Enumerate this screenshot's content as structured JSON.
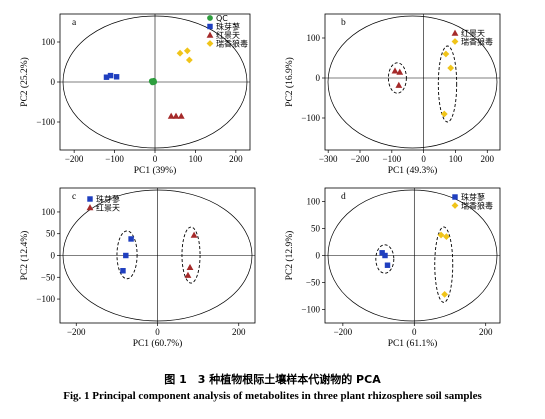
{
  "chart_data": [
    {
      "panel": "a",
      "type": "scatter",
      "xlabel": "PC1 (39%)",
      "ylabel": "PC2 (25.2%)",
      "xlim": [
        -235,
        235
      ],
      "ylim": [
        -170,
        170
      ],
      "xticks": [
        -200,
        -100,
        0,
        100,
        200
      ],
      "yticks": [
        -100,
        0,
        100
      ],
      "legend": [
        "QC",
        "珠芽蓼",
        "红景天",
        "瑞香狼毒"
      ],
      "legend_position": "top-right",
      "confidence_ellipse": true,
      "series": [
        {
          "name": "QC",
          "marker": "circle",
          "color": "#2e9e3e",
          "points": [
            [
              -8,
              2
            ],
            [
              -4,
              1
            ],
            [
              -2,
              0
            ],
            [
              -6,
              -1
            ],
            [
              -3,
              3
            ]
          ]
        },
        {
          "name": "珠芽蓼",
          "marker": "square",
          "color": "#1f3fbf",
          "points": [
            [
              -120,
              12
            ],
            [
              -110,
              16
            ],
            [
              -95,
              13
            ]
          ]
        },
        {
          "name": "红景天",
          "marker": "triangle",
          "color": "#a52a2a",
          "points": [
            [
              40,
              -85
            ],
            [
              52,
              -85
            ],
            [
              65,
              -85
            ]
          ]
        },
        {
          "name": "瑞香狼毒",
          "marker": "diamond",
          "color": "#f0c419",
          "points": [
            [
              62,
              72
            ],
            [
              80,
              78
            ],
            [
              85,
              55
            ]
          ]
        }
      ]
    },
    {
      "panel": "b",
      "type": "scatter",
      "xlabel": "PC1 (49.3%)",
      "ylabel": "PC2 (16.9%)",
      "xlim": [
        -310,
        240
      ],
      "ylim": [
        -180,
        160
      ],
      "xticks": [
        -300,
        -200,
        -100,
        0,
        100,
        200
      ],
      "yticks": [
        -100,
        0,
        100
      ],
      "legend": [
        "红景天",
        "瑞香狼毒"
      ],
      "legend_position": "top-right",
      "confidence_ellipse": true,
      "series": [
        {
          "name": "红景天",
          "marker": "triangle",
          "color": "#a52a2a",
          "points": [
            [
              -90,
              18
            ],
            [
              -75,
              15
            ],
            [
              -78,
              -18
            ]
          ]
        },
        {
          "name": "瑞香狼毒",
          "marker": "diamond",
          "color": "#f0c419",
          "points": [
            [
              70,
              60
            ],
            [
              85,
              25
            ],
            [
              65,
              -90
            ]
          ]
        }
      ]
    },
    {
      "panel": "c",
      "type": "scatter",
      "xlabel": "PC1 (60.7%)",
      "ylabel": "PC2 (12.4%)",
      "xlim": [
        -240,
        240
      ],
      "ylim": [
        -155,
        155
      ],
      "xticks": [
        -200,
        0,
        200
      ],
      "yticks": [
        -100,
        -50,
        0,
        50,
        100
      ],
      "legend": [
        "珠芽蓼",
        "红景天"
      ],
      "legend_position": "top-left",
      "confidence_ellipse": true,
      "series": [
        {
          "name": "珠芽蓼",
          "marker": "square",
          "color": "#1f3fbf",
          "points": [
            [
              -65,
              38
            ],
            [
              -78,
              0
            ],
            [
              -85,
              -35
            ]
          ]
        },
        {
          "name": "红景天",
          "marker": "triangle",
          "color": "#a52a2a",
          "points": [
            [
              90,
              47
            ],
            [
              80,
              -27
            ],
            [
              75,
              -45
            ]
          ]
        }
      ]
    },
    {
      "panel": "d",
      "type": "scatter",
      "xlabel": "PC1 (61.1%)",
      "ylabel": "PC2 (12.9%)",
      "xlim": [
        -250,
        240
      ],
      "ylim": [
        -125,
        125
      ],
      "xticks": [
        -200,
        0,
        200
      ],
      "yticks": [
        -100,
        -50,
        0,
        50,
        100
      ],
      "legend": [
        "珠芽蓼",
        "瑞香狼毒"
      ],
      "legend_position": "top-right",
      "confidence_ellipse": true,
      "series": [
        {
          "name": "珠芽蓼",
          "marker": "square",
          "color": "#1f3fbf",
          "points": [
            [
              -90,
              5
            ],
            [
              -82,
              0
            ],
            [
              -75,
              -18
            ]
          ]
        },
        {
          "name": "瑞香狼毒",
          "marker": "diamond",
          "color": "#f0c419",
          "points": [
            [
              75,
              38
            ],
            [
              90,
              35
            ],
            [
              85,
              -72
            ]
          ]
        }
      ]
    }
  ],
  "caption": {
    "chinese": "图 1　3 种植物根际土壤样本代谢物的 PCA",
    "english": "Fig. 1    Principal component analysis of metabolites in three plant rhizosphere soil samples"
  }
}
